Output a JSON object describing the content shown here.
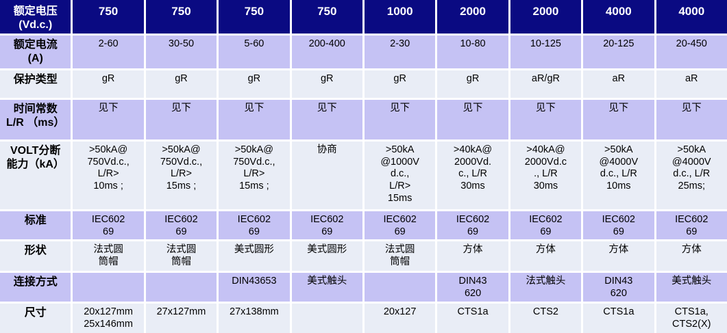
{
  "table": {
    "description": "DC fuse specification table",
    "colors": {
      "header_bg": "#0A0A82",
      "header_text": "#FFFFFF",
      "row_lavender_bg": "#C5C2F4",
      "row_light_bg": "#E9EDF6",
      "grid_gap": "#FFFFFF",
      "body_text": "#000000"
    },
    "header": {
      "label": "额定电压\n(Vd.c.)",
      "values": [
        "750",
        "750",
        "750",
        "750",
        "1000",
        "2000",
        "2000",
        "4000",
        "4000"
      ]
    },
    "rows": [
      {
        "label": "额定电流\n(A)",
        "values": [
          "2-60",
          "30-50",
          "5-60",
          "200-400",
          "2-30",
          "10-80",
          "10-125",
          "20-125",
          "20-450"
        ]
      },
      {
        "label": "保护类型",
        "values": [
          "gR",
          "gR",
          "gR",
          "gR",
          "gR",
          "gR",
          "aR/gR",
          "aR",
          "aR"
        ]
      },
      {
        "label": "时间常数\nL/R （ms）",
        "values": [
          "见下",
          "见下",
          "见下",
          "见下",
          "见下",
          "见下",
          "见下",
          "见下",
          "见下"
        ]
      },
      {
        "label": "VOLT分断\n能力（kA）",
        "values": [
          ">50kA@\n750Vd.c.,\nL/R>\n10ms ;",
          ">50kA@\n750Vd.c.,\nL/R>\n15ms ;",
          ">50kA@\n750Vd.c.,\nL/R>\n15ms ;",
          "协商",
          ">50kA\n@1000V\nd.c.,\nL/R>\n15ms",
          ">40kA@\n2000Vd.\nc., L/R\n30ms",
          ">40kA@\n2000Vd.c\n., L/R\n30ms",
          ">50kA\n@4000V\nd.c., L/R\n10ms",
          ">50kA\n@4000V\nd.c., L/R\n25ms;"
        ]
      },
      {
        "label": "标准",
        "values": [
          "IEC602\n69",
          "IEC602\n69",
          "IEC602\n69",
          "IEC602\n69",
          "IEC602\n69",
          "IEC602\n69",
          "IEC602\n69",
          "IEC602\n69",
          "IEC602\n69"
        ]
      },
      {
        "label": "形状",
        "values": [
          "法式圆\n筒帽",
          "法式圆\n筒帽",
          "美式圆形",
          "美式圆形",
          "法式圆\n筒帽",
          "方体",
          "方体",
          "方体",
          "方体"
        ]
      },
      {
        "label": "连接方式",
        "values": [
          "",
          "",
          "DIN43653",
          "美式触头",
          "",
          "DIN43\n620",
          "法式触头",
          "DIN43\n620",
          "美式触头"
        ]
      },
      {
        "label": "尺寸",
        "values": [
          "20x127mm\n25x146mm",
          "27x127mm",
          "27x138mm",
          "",
          "20x127",
          "CTS1a",
          "CTS2",
          "CTS1a",
          "CTS1a,\nCTS2(X)"
        ]
      }
    ]
  }
}
